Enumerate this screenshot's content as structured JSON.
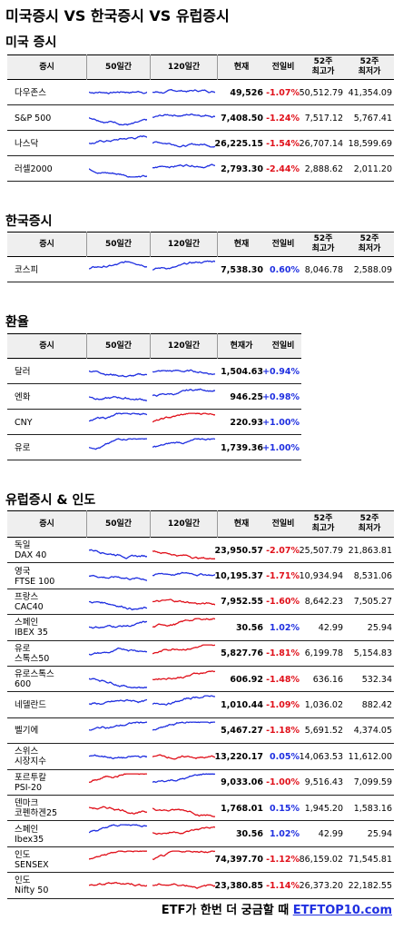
{
  "title": "미국증시 VS 한국증시 VS 유럽증시",
  "sections": [
    {
      "title": "미국 증시",
      "columns": [
        "증시",
        "50일간",
        "120일간",
        "현재",
        "전일비",
        "52주\n최고가",
        "52주\n최저가"
      ],
      "rows": [
        {
          "name": "다우존스",
          "current": "49,526",
          "change": "-1.07%",
          "high": "50,512.79",
          "low": "41,354.09",
          "colors": [
            "#1f2fe0",
            "#1f2fe0"
          ]
        },
        {
          "name": "S&P 500",
          "current": "7,408.50",
          "change": "-1.24%",
          "high": "7,517.12",
          "low": "5,767.41",
          "colors": [
            "#1f2fe0",
            "#1f2fe0"
          ]
        },
        {
          "name": "나스닥",
          "current": "26,225.15",
          "change": "-1.54%",
          "high": "26,707.14",
          "low": "18,599.69",
          "colors": [
            "#1f2fe0",
            "#1f2fe0"
          ]
        },
        {
          "name": "러셀2000",
          "current": "2,793.30",
          "change": "-2.44%",
          "high": "2,888.62",
          "low": "2,011.20",
          "colors": [
            "#1f2fe0",
            "#1f2fe0"
          ]
        }
      ]
    },
    {
      "title": "한국증시",
      "columns": [
        "증시",
        "50일간",
        "120일간",
        "현재",
        "전일비",
        "52주\n최고가",
        "52주\n최저가"
      ],
      "rows": [
        {
          "name": "코스피",
          "current": "7,538.30",
          "change": "0.60%",
          "high": "8,046.78",
          "low": "2,588.09",
          "colors": [
            "#1f2fe0",
            "#1f2fe0"
          ]
        }
      ]
    },
    {
      "title": "환율",
      "columns": [
        "증시",
        "50일간",
        "120일간",
        "현재가",
        "전일비"
      ],
      "rows": [
        {
          "name": "달러",
          "current": "1,504.63",
          "change": "+0.94%",
          "colors": [
            "#1f2fe0",
            "#1f2fe0"
          ]
        },
        {
          "name": "엔화",
          "current": "946.25",
          "change": "+0.98%",
          "colors": [
            "#1f2fe0",
            "#1f2fe0"
          ]
        },
        {
          "name": "CNY",
          "current": "220.93",
          "change": "+1.00%",
          "colors": [
            "#1f2fe0",
            "#e0101a"
          ]
        },
        {
          "name": "유로",
          "current": "1,739.36",
          "change": "+1.00%",
          "colors": [
            "#1f2fe0",
            "#1f2fe0"
          ]
        }
      ]
    },
    {
      "title": "유럽증시 & 인도",
      "columns": [
        "증시",
        "50일간",
        "120일간",
        "현재",
        "전일비",
        "52주\n최고가",
        "52주\n최저가"
      ],
      "rows": [
        {
          "name": "독일\nDAX 40",
          "current": "23,950.57",
          "change": "-2.07%",
          "high": "25,507.79",
          "low": "21,863.81",
          "colors": [
            "#1f2fe0",
            "#e0101a"
          ]
        },
        {
          "name": "영국\nFTSE 100",
          "current": "10,195.37",
          "change": "-1.71%",
          "high": "10,934.94",
          "low": "8,531.06",
          "colors": [
            "#1f2fe0",
            "#1f2fe0"
          ]
        },
        {
          "name": "프랑스\nCAC40",
          "current": "7,952.55",
          "change": "-1.60%",
          "high": "8,642.23",
          "low": "7,505.27",
          "colors": [
            "#1f2fe0",
            "#e0101a"
          ]
        },
        {
          "name": "스페인\nIBEX 35",
          "current": "30.56",
          "change": "1.02%",
          "high": "42.99",
          "low": "25.94",
          "colors": [
            "#1f2fe0",
            "#e0101a"
          ]
        },
        {
          "name": "유로\n스톡스50",
          "current": "5,827.76",
          "change": "-1.81%",
          "high": "6,199.78",
          "low": "5,154.83",
          "colors": [
            "#1f2fe0",
            "#e0101a"
          ]
        },
        {
          "name": "유로스톡스\n600",
          "current": "606.92",
          "change": "-1.48%",
          "high": "636.16",
          "low": "532.34",
          "colors": [
            "#1f2fe0",
            "#e0101a"
          ]
        },
        {
          "name": "네델란드",
          "current": "1,010.44",
          "change": "-1.09%",
          "high": "1,036.02",
          "low": "882.42",
          "colors": [
            "#1f2fe0",
            "#1f2fe0"
          ]
        },
        {
          "name": "벨기에",
          "current": "5,467.27",
          "change": "-1.18%",
          "high": "5,691.52",
          "low": "4,374.05",
          "colors": [
            "#1f2fe0",
            "#1f2fe0"
          ]
        },
        {
          "name": "스위스\n시장지수",
          "current": "13,220.17",
          "change": "0.05%",
          "high": "14,063.53",
          "low": "11,612.00",
          "colors": [
            "#1f2fe0",
            "#e0101a"
          ]
        },
        {
          "name": "포르투칼\nPSI-20",
          "current": "9,033.06",
          "change": "-1.00%",
          "high": "9,516.43",
          "low": "7,099.59",
          "colors": [
            "#e0101a",
            "#1f2fe0"
          ]
        },
        {
          "name": "덴마크\n코펜하겐25",
          "current": "1,768.01",
          "change": "0.15%",
          "high": "1,945.20",
          "low": "1,583.16",
          "colors": [
            "#e0101a",
            "#e0101a"
          ]
        },
        {
          "name": "스페인\nIbex35",
          "current": "30.56",
          "change": "1.02%",
          "high": "42.99",
          "low": "25.94",
          "colors": [
            "#1f2fe0",
            "#e0101a"
          ]
        },
        {
          "name": "인도\nSENSEX",
          "current": "74,397.70",
          "change": "-1.12%",
          "high": "86,159.02",
          "low": "71,545.81",
          "colors": [
            "#e0101a",
            "#e0101a"
          ]
        },
        {
          "name": "인도\nNifty 50",
          "current": "23,380.85",
          "change": "-1.14%",
          "high": "26,373.20",
          "low": "22,182.55",
          "colors": [
            "#e0101a",
            "#e0101a"
          ]
        }
      ]
    }
  ],
  "footer": {
    "text": "ETF가 한번 더 궁금할 때",
    "link": "ETFTOP10.com"
  }
}
